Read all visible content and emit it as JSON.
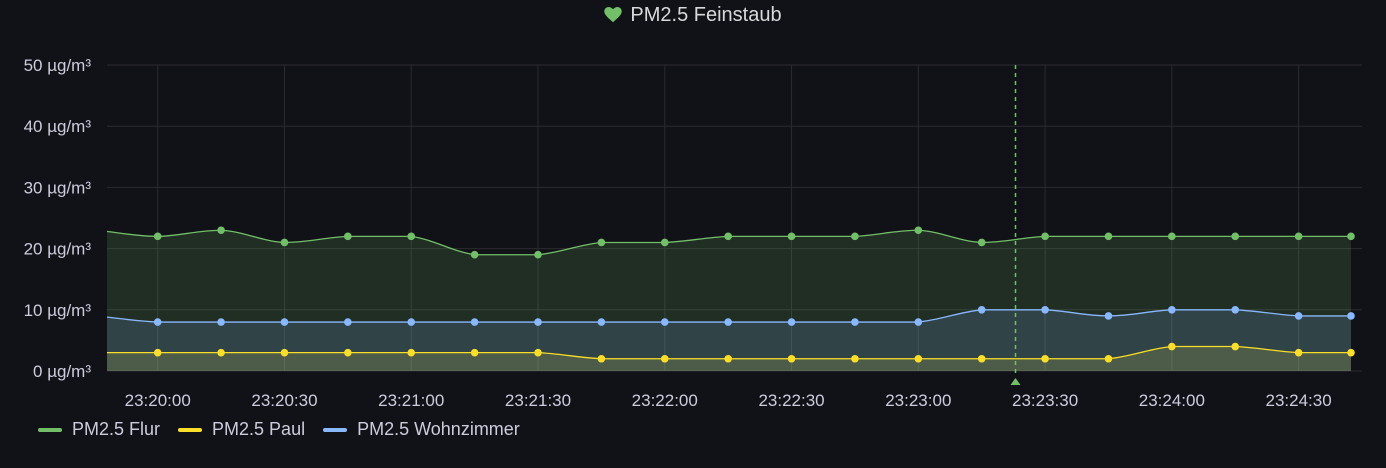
{
  "panel": {
    "title": "PM2.5 Feinstaub",
    "title_icon": "heart-icon",
    "title_icon_color": "#73bf69"
  },
  "colors": {
    "background": "#111217",
    "grid": "#2a2b30",
    "axis_text": "#ccccdc",
    "crosshair": "#73bf69"
  },
  "chart_data": {
    "type": "area",
    "title": "PM2.5 Feinstaub",
    "xlabel": "",
    "ylabel": "",
    "ylim": [
      0,
      50
    ],
    "yticks": [
      "0 µg/m³",
      "10 µg/m³",
      "20 µg/m³",
      "30 µg/m³",
      "40 µg/m³",
      "50 µg/m³"
    ],
    "ytick_values": [
      0,
      10,
      20,
      30,
      40,
      50
    ],
    "xticks": [
      "23:20:00",
      "23:20:30",
      "23:21:00",
      "23:21:30",
      "23:22:00",
      "23:22:30",
      "23:23:00",
      "23:23:30",
      "23:24:00",
      "23:24:30"
    ],
    "xtick_seconds": [
      0,
      30,
      60,
      90,
      120,
      150,
      180,
      210,
      240,
      270
    ],
    "xlim_seconds": [
      -12,
      285
    ],
    "x_seconds": [
      0,
      15,
      30,
      45,
      60,
      75,
      90,
      105,
      120,
      135,
      150,
      165,
      180,
      195,
      210,
      225,
      240,
      255,
      270,
      285
    ],
    "grid": true,
    "legend_position": "bottom-left",
    "crosshair_seconds": 203,
    "series": [
      {
        "name": "PM2.5 Flur",
        "color": "#73bf69",
        "start_value": 22.8,
        "values": [
          22,
          23,
          21,
          22,
          22,
          19,
          19,
          21,
          21,
          22,
          22,
          22,
          23,
          21,
          22,
          22,
          22,
          22,
          22,
          22
        ]
      },
      {
        "name": "PM2.5 Paul",
        "color": "#fade2a",
        "start_value": 3,
        "values": [
          3,
          3,
          3,
          3,
          3,
          3,
          3,
          2,
          2,
          2,
          2,
          2,
          2,
          2,
          2,
          2,
          4,
          4,
          3,
          3
        ]
      },
      {
        "name": "PM2.5 Wohnzimmer",
        "color": "#8ab8ff",
        "start_value": 8.8,
        "values": [
          8,
          8,
          8,
          8,
          8,
          8,
          8,
          8,
          8,
          8,
          8,
          8,
          8,
          10,
          10,
          9,
          10,
          10,
          9,
          9
        ]
      }
    ]
  },
  "legend": {
    "items": [
      {
        "label": "PM2.5 Flur",
        "color": "#73bf69"
      },
      {
        "label": "PM2.5 Paul",
        "color": "#fade2a"
      },
      {
        "label": "PM2.5 Wohnzimmer",
        "color": "#8ab8ff"
      }
    ]
  }
}
